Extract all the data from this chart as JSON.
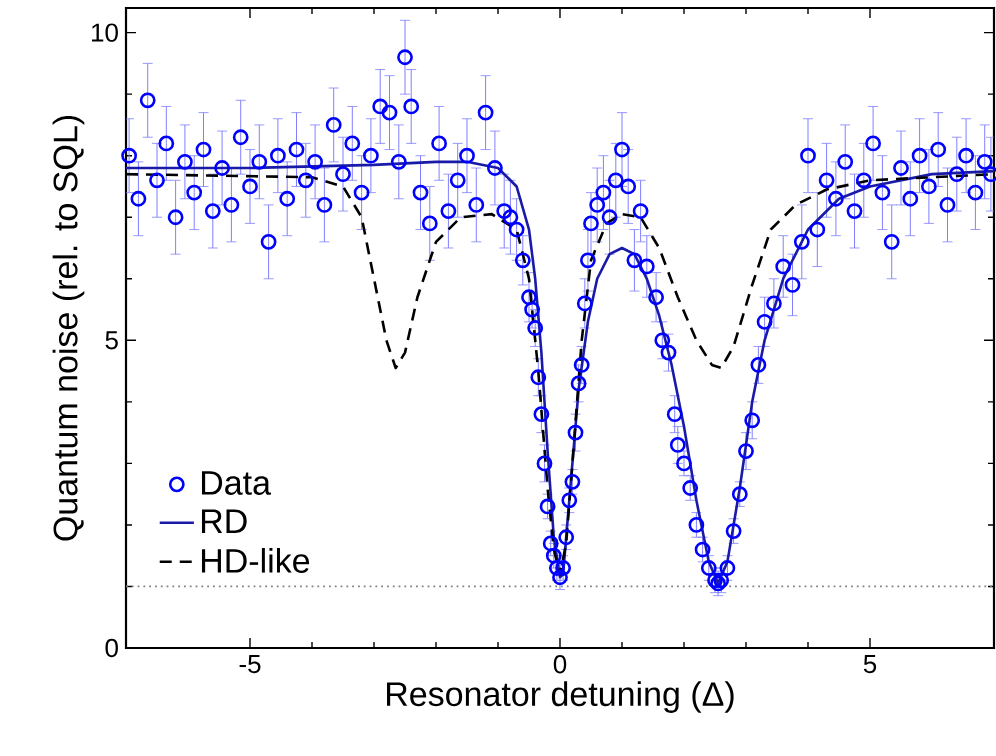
{
  "chart_data": {
    "type": "scatter",
    "xlabel": "Resonator detuning (Δ)",
    "ylabel": "Quantum noise (rel. to SQL)",
    "xlim": [
      -7,
      7
    ],
    "ylim": [
      0,
      10.4
    ],
    "xticks": [
      -5,
      0,
      5
    ],
    "yticks": [
      0,
      5,
      10
    ],
    "grid": false,
    "legend": "bottom left",
    "ref_lines": [
      {
        "axis": "y",
        "value": 1,
        "color": "#808080",
        "line_style": "dotted"
      }
    ],
    "series": [
      {
        "name": "Data",
        "marker": "circle",
        "color": "#0000ff",
        "x": [
          -6.95,
          -6.8,
          -6.65,
          -6.5,
          -6.35,
          -6.2,
          -6.05,
          -5.9,
          -5.75,
          -5.6,
          -5.45,
          -5.3,
          -5.15,
          -5.0,
          -4.85,
          -4.7,
          -4.55,
          -4.4,
          -4.25,
          -4.1,
          -3.95,
          -3.8,
          -3.65,
          -3.5,
          -3.35,
          -3.2,
          -3.05,
          -2.9,
          -2.75,
          -2.6,
          -2.5,
          -2.4,
          -2.25,
          -2.1,
          -1.95,
          -1.8,
          -1.65,
          -1.5,
          -1.35,
          -1.2,
          -1.05,
          -0.9,
          -0.8,
          -0.7,
          -0.6,
          -0.5,
          -0.45,
          -0.4,
          -0.35,
          -0.3,
          -0.25,
          -0.2,
          -0.15,
          -0.1,
          -0.05,
          0,
          0.05,
          0.1,
          0.15,
          0.2,
          0.25,
          0.3,
          0.35,
          0.4,
          0.45,
          0.5,
          0.6,
          0.7,
          0.8,
          0.9,
          1.0,
          1.1,
          1.2,
          1.3,
          1.4,
          1.55,
          1.65,
          1.75,
          1.85,
          1.9,
          2.0,
          2.1,
          2.2,
          2.3,
          2.4,
          2.5,
          2.55,
          2.6,
          2.7,
          2.8,
          2.9,
          3.0,
          3.1,
          3.2,
          3.3,
          3.45,
          3.6,
          3.75,
          3.9,
          4.0,
          4.15,
          4.3,
          4.45,
          4.6,
          4.75,
          4.9,
          5.05,
          5.2,
          5.35,
          5.5,
          5.65,
          5.8,
          5.95,
          6.1,
          6.25,
          6.4,
          6.55,
          6.7,
          6.85,
          6.95
        ],
        "values": [
          8.0,
          7.3,
          8.9,
          7.6,
          8.2,
          7.0,
          7.9,
          7.4,
          8.1,
          7.1,
          7.8,
          7.2,
          8.3,
          7.5,
          7.9,
          6.6,
          8.0,
          7.3,
          8.1,
          7.6,
          7.9,
          7.2,
          8.5,
          7.7,
          8.2,
          7.4,
          8.0,
          8.8,
          8.7,
          7.9,
          9.6,
          8.8,
          7.4,
          6.9,
          8.2,
          7.1,
          7.6,
          8.0,
          7.2,
          8.7,
          7.8,
          7.1,
          7.0,
          6.8,
          6.3,
          5.7,
          5.5,
          5.2,
          4.4,
          3.8,
          3.0,
          2.3,
          1.7,
          1.5,
          1.3,
          1.15,
          1.3,
          1.8,
          2.4,
          2.7,
          3.5,
          4.3,
          4.6,
          5.6,
          6.3,
          6.9,
          7.2,
          7.4,
          7.0,
          7.6,
          8.1,
          7.5,
          6.3,
          7.1,
          6.2,
          5.7,
          5.0,
          4.8,
          3.8,
          3.3,
          3.0,
          2.6,
          2.0,
          1.6,
          1.3,
          1.1,
          1.05,
          1.1,
          1.3,
          1.9,
          2.5,
          3.2,
          3.7,
          4.6,
          5.3,
          5.6,
          6.2,
          5.9,
          6.6,
          8.0,
          6.8,
          7.6,
          7.3,
          7.9,
          7.1,
          7.6,
          8.2,
          7.4,
          6.6,
          7.8,
          7.3,
          8.0,
          7.5,
          8.1,
          7.2,
          7.7,
          8.0,
          7.4,
          7.9,
          7.7
        ],
        "errors": [
          0.6,
          0.6,
          0.6,
          0.6,
          0.6,
          0.6,
          0.6,
          0.6,
          0.6,
          0.6,
          0.6,
          0.6,
          0.6,
          0.6,
          0.6,
          0.6,
          0.6,
          0.6,
          0.6,
          0.6,
          0.6,
          0.6,
          0.6,
          0.6,
          0.6,
          0.6,
          0.6,
          0.6,
          0.6,
          0.6,
          0.6,
          0.6,
          0.6,
          0.6,
          0.6,
          0.6,
          0.6,
          0.6,
          0.6,
          0.6,
          0.6,
          0.6,
          0.6,
          0.5,
          0.4,
          0.4,
          0.3,
          0.3,
          0.3,
          0.3,
          0.3,
          0.2,
          0.2,
          0.2,
          0.2,
          0.2,
          0.2,
          0.2,
          0.2,
          0.2,
          0.3,
          0.3,
          0.3,
          0.4,
          0.5,
          0.5,
          0.6,
          0.6,
          0.6,
          0.6,
          0.6,
          0.6,
          0.5,
          0.5,
          0.5,
          0.4,
          0.3,
          0.3,
          0.3,
          0.3,
          0.2,
          0.2,
          0.2,
          0.2,
          0.2,
          0.2,
          0.2,
          0.2,
          0.2,
          0.2,
          0.2,
          0.3,
          0.3,
          0.3,
          0.4,
          0.4,
          0.5,
          0.5,
          0.6,
          0.6,
          0.6,
          0.6,
          0.6,
          0.6,
          0.6,
          0.6,
          0.6,
          0.6,
          0.6,
          0.6,
          0.6,
          0.6,
          0.6,
          0.6,
          0.6,
          0.6,
          0.6,
          0.6,
          0.6,
          0.6
        ]
      },
      {
        "name": "RD",
        "type": "line",
        "marker": "none",
        "line_style": "solid",
        "color": "#1a1aa8",
        "x": [
          -7,
          -5,
          -3,
          -2,
          -1.5,
          -1,
          -0.7,
          -0.5,
          -0.4,
          -0.3,
          -0.2,
          -0.1,
          0,
          0.05,
          0.1,
          0.2,
          0.3,
          0.45,
          0.6,
          0.8,
          1.0,
          1.2,
          1.4,
          1.6,
          1.8,
          2.0,
          2.2,
          2.4,
          2.55,
          2.7,
          2.9,
          3.1,
          3.3,
          3.6,
          4.0,
          4.5,
          5,
          6,
          7
        ],
        "values": [
          7.8,
          7.8,
          7.85,
          7.9,
          7.9,
          7.8,
          7.5,
          6.8,
          6.0,
          4.8,
          3.2,
          1.8,
          1.15,
          1.2,
          1.8,
          3.0,
          4.2,
          5.3,
          6.0,
          6.4,
          6.5,
          6.4,
          6.0,
          5.4,
          4.6,
          3.6,
          2.4,
          1.4,
          1.05,
          1.4,
          2.6,
          4.0,
          5.0,
          6.0,
          6.8,
          7.3,
          7.5,
          7.7,
          7.75
        ]
      },
      {
        "name": "HD-like",
        "type": "line",
        "marker": "none",
        "line_style": "dashed",
        "color": "#000000",
        "x": [
          -7,
          -4,
          -3.5,
          -3.2,
          -3.0,
          -2.8,
          -2.65,
          -2.5,
          -2.3,
          -2.0,
          -1.6,
          -1.1,
          -0.7,
          -0.5,
          -0.35,
          -0.2,
          -0.1,
          0,
          0.1,
          0.2,
          0.35,
          0.5,
          0.75,
          1.0,
          1.3,
          1.6,
          1.9,
          2.2,
          2.45,
          2.6,
          2.8,
          3.1,
          3.4,
          3.8,
          4.3,
          5,
          7
        ],
        "values": [
          7.7,
          7.65,
          7.5,
          7.0,
          6.0,
          5.0,
          4.55,
          4.8,
          5.7,
          6.6,
          7.0,
          7.05,
          6.8,
          6.0,
          4.5,
          2.6,
          1.6,
          1.2,
          1.7,
          3.0,
          5.0,
          6.3,
          6.9,
          7.05,
          7.0,
          6.5,
          5.7,
          5.0,
          4.6,
          4.55,
          4.9,
          5.9,
          6.8,
          7.2,
          7.45,
          7.6,
          7.7
        ]
      }
    ]
  }
}
